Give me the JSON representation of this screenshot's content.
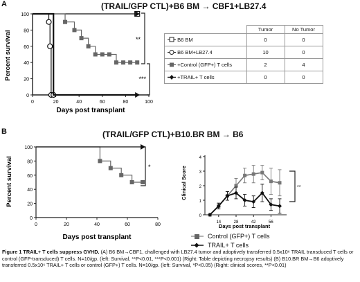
{
  "panel_a": {
    "letter": "A",
    "title": "(TRAIL/GFP CTL)+B6 BM → CBF1+LB27.4",
    "ylabel": "Percent survival",
    "xlabel": "Days post transplant",
    "yticks": [
      "0",
      "20",
      "40",
      "60",
      "80",
      "100"
    ],
    "xticks": [
      "0",
      "20",
      "40",
      "60",
      "80",
      "100"
    ],
    "sig1": "**",
    "sig2": "***",
    "table": {
      "headers": [
        "",
        "Tumor",
        "No Tumor"
      ],
      "rows": [
        {
          "label": "B6 BM",
          "tumor": "0",
          "notumor": "0"
        },
        {
          "label": "B6 BM+LB27.4",
          "tumor": "10",
          "notumor": "0"
        },
        {
          "label": "+Control (GFP+) T cells",
          "tumor": "2",
          "notumor": "4"
        },
        {
          "label": "+TRAIL+ T cells",
          "tumor": "0",
          "notumor": "0"
        }
      ]
    }
  },
  "panel_b": {
    "letter": "B",
    "title": "(TRAIL/GFP CTL)+B10.BR BM → B6",
    "left": {
      "ylabel": "Percent survival",
      "xlabel": "Days post transplant",
      "yticks": [
        "0",
        "20",
        "40",
        "60",
        "80",
        "100"
      ],
      "xticks": [
        "0",
        "20",
        "40",
        "60",
        "80"
      ],
      "sig": "*"
    },
    "right": {
      "ylabel": "Clinical Score",
      "xlabel": "Days post transplant",
      "yticks": [
        "0",
        "1",
        "2",
        "3",
        "4"
      ],
      "xticks": [
        "14",
        "28",
        "42",
        "56"
      ],
      "sig": "**"
    },
    "legend": [
      {
        "label": "Control (GFP+) T cells"
      },
      {
        "label": "TRAIL+ T cells"
      }
    ]
  },
  "caption": {
    "bold": "Figure 1 TRAIL+ T cells suppress GVHD.",
    "text": " (A) B6 BM→CBF1, challenged with LB27.4 tumor and  adoptively transferred 0.5x10⁶ TRAIL transduced T cells or control (GFP-transduced) T cells. N=10/gp. (left: Survival, **P<0.01, ***P<0.001) (Right: Table depicting necropsy results) (B) B10.BR BM→B6 adoptively transferred  0.5x10⁶ TRAIL+ T cells or control (GFP+) T cells. N=10/gp. (left: Survival, *P<0.05) (Right: clinical scores, **P<0.01)"
  },
  "chart_data": [
    {
      "type": "line",
      "title": "(TRAIL/GFP CTL)+B6 BM → CBF1+LB27.4",
      "xlabel": "Days post transplant",
      "ylabel": "Percent survival",
      "xlim": [
        0,
        100
      ],
      "ylim": [
        0,
        100
      ],
      "series": [
        {
          "name": "B6 BM",
          "x": [
            0,
            90
          ],
          "y": [
            100,
            100
          ]
        },
        {
          "name": "B6 BM+LB27.4",
          "x": [
            0,
            14,
            15,
            16,
            18
          ],
          "y": [
            100,
            90,
            60,
            0,
            0
          ]
        },
        {
          "name": "+Control (GFP+) T cells",
          "x": [
            0,
            28,
            36,
            42,
            48,
            54,
            60,
            66,
            72,
            78,
            84,
            90
          ],
          "y": [
            100,
            90,
            80,
            70,
            60,
            50,
            50,
            50,
            40,
            40,
            40,
            40
          ]
        },
        {
          "name": "+TRAIL+ T cells",
          "x": [
            0,
            18,
            90
          ],
          "y": [
            100,
            0,
            0
          ]
        }
      ]
    },
    {
      "type": "line",
      "title": "(TRAIL/GFP CTL)+B10.BR BM → B6",
      "xlabel": "Days post transplant",
      "ylabel": "Percent survival",
      "xlim": [
        0,
        80
      ],
      "ylim": [
        0,
        100
      ],
      "series": [
        {
          "name": "Control (GFP+) T cells",
          "x": [
            0,
            42,
            49,
            56,
            63,
            70
          ],
          "y": [
            100,
            80,
            70,
            60,
            50,
            50
          ]
        },
        {
          "name": "TRAIL+ T cells",
          "x": [
            0,
            70
          ],
          "y": [
            100,
            100
          ]
        }
      ]
    },
    {
      "type": "line",
      "xlabel": "Days post transplant",
      "ylabel": "Clinical Score",
      "ylim": [
        0,
        4
      ],
      "series": [
        {
          "name": "Control (GFP+) T cells",
          "x": [
            7,
            14,
            21,
            28,
            35,
            42,
            49,
            56,
            63
          ],
          "y": [
            0,
            0.6,
            1.3,
            2.0,
            2.7,
            2.8,
            2.9,
            2.3,
            2.2
          ],
          "err": [
            0,
            0.2,
            0.3,
            0.5,
            0.5,
            0.6,
            0.5,
            0.9,
            0.9
          ]
        },
        {
          "name": "TRAIL+ T cells",
          "x": [
            7,
            14,
            21,
            28,
            35,
            42,
            49,
            56,
            63
          ],
          "y": [
            0,
            0.6,
            1.3,
            1.5,
            1.0,
            0.9,
            1.5,
            0.7,
            0.6
          ],
          "err": [
            0,
            0.2,
            0.3,
            0.4,
            0.4,
            0.4,
            0.6,
            0.4,
            0.5
          ]
        }
      ]
    }
  ]
}
